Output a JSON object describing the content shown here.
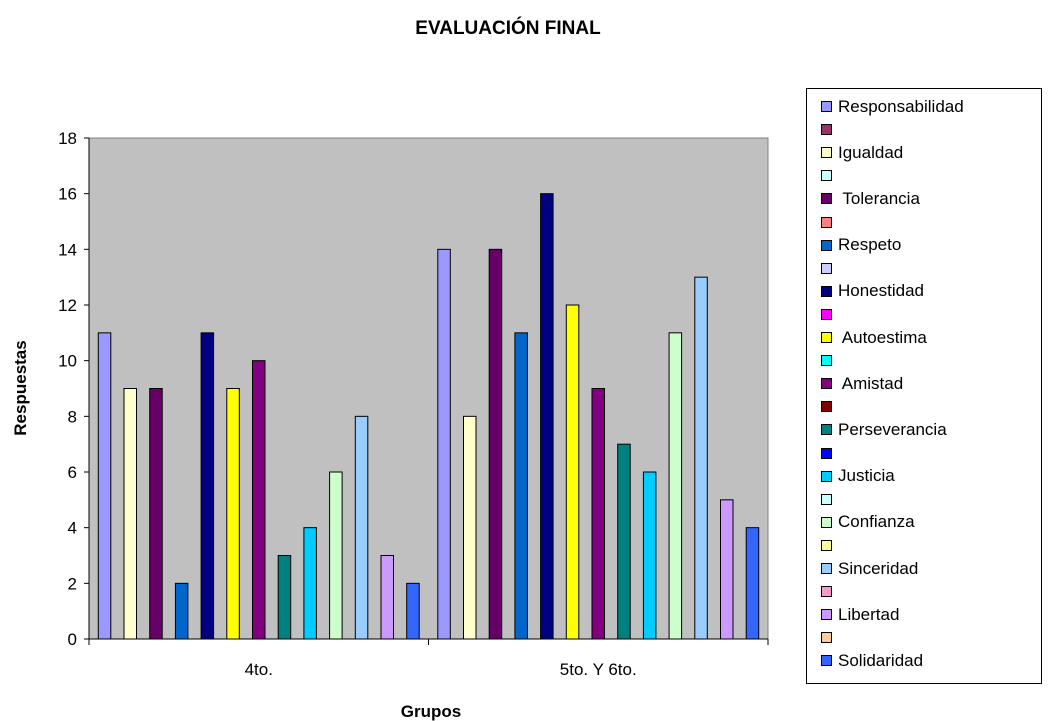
{
  "chart_data": {
    "type": "bar",
    "title": "EVALUACIÓN FINAL",
    "xlabel": "Grupos",
    "ylabel": "Respuestas",
    "ylim": [
      0,
      18
    ],
    "ytick_step": 2,
    "grid": false,
    "legend_position": "right",
    "plot_background": "#c0c0c0",
    "categories": [
      "4to.",
      "5to. Y 6to."
    ],
    "series": [
      {
        "name": "Responsabilidad",
        "color": "#9999ff",
        "values": [
          11,
          14
        ]
      },
      {
        "name": "",
        "color": "#993366",
        "values": [
          null,
          null
        ]
      },
      {
        "name": "Igualdad",
        "color": "#ffffcc",
        "values": [
          9,
          8
        ]
      },
      {
        "name": "",
        "color": "#ccffff",
        "values": [
          null,
          null
        ]
      },
      {
        "name": " Tolerancia",
        "color": "#660066",
        "values": [
          9,
          14
        ]
      },
      {
        "name": "",
        "color": "#ff8080",
        "values": [
          null,
          null
        ]
      },
      {
        "name": "Respeto",
        "color": "#0066cc",
        "values": [
          2,
          11
        ]
      },
      {
        "name": "",
        "color": "#ccccff",
        "values": [
          null,
          null
        ]
      },
      {
        "name": "Honestidad",
        "color": "#000080",
        "values": [
          11,
          16
        ]
      },
      {
        "name": "",
        "color": "#ff00ff",
        "values": [
          null,
          null
        ]
      },
      {
        "name": " Autoestima",
        "color": "#ffff00",
        "values": [
          9,
          12
        ]
      },
      {
        "name": "",
        "color": "#00ffff",
        "values": [
          null,
          null
        ]
      },
      {
        "name": " Amistad",
        "color": "#800080",
        "values": [
          10,
          9
        ]
      },
      {
        "name": "",
        "color": "#800000",
        "values": [
          null,
          null
        ]
      },
      {
        "name": "Perseverancia",
        "color": "#008080",
        "values": [
          3,
          7
        ]
      },
      {
        "name": "",
        "color": "#0000ff",
        "values": [
          null,
          null
        ]
      },
      {
        "name": "Justicia",
        "color": "#00ccff",
        "values": [
          4,
          6
        ]
      },
      {
        "name": "",
        "color": "#ccffff",
        "values": [
          null,
          null
        ]
      },
      {
        "name": "Confianza",
        "color": "#ccffcc",
        "values": [
          6,
          11
        ]
      },
      {
        "name": "",
        "color": "#ffff99",
        "values": [
          null,
          null
        ]
      },
      {
        "name": "Sinceridad",
        "color": "#99ccff",
        "values": [
          8,
          13
        ]
      },
      {
        "name": "",
        "color": "#ff99cc",
        "values": [
          null,
          null
        ]
      },
      {
        "name": "Libertad",
        "color": "#cc99ff",
        "values": [
          3,
          5
        ]
      },
      {
        "name": "",
        "color": "#ffcc99",
        "values": [
          null,
          null
        ]
      },
      {
        "name": "Solidaridad",
        "color": "#3366ff",
        "values": [
          2,
          4
        ]
      }
    ]
  }
}
